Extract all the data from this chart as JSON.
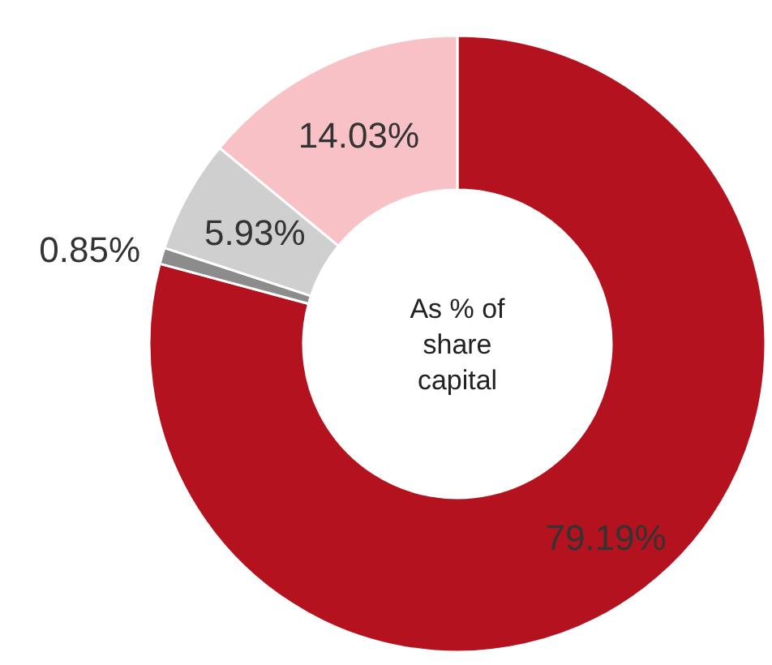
{
  "chart_data": {
    "type": "donut",
    "categories": [
      null,
      null,
      null,
      null
    ],
    "values": [
      79.19,
      0.85,
      5.93,
      14.03
    ],
    "colors": [
      "#b5121f",
      "#8c8c8c",
      "#cfcfcf",
      "#f7c1c6"
    ],
    "value_labels": [
      "79.19%",
      "0.85%",
      "5.93%",
      "14.03%"
    ],
    "annotations": [
      "As % of share capital"
    ]
  }
}
